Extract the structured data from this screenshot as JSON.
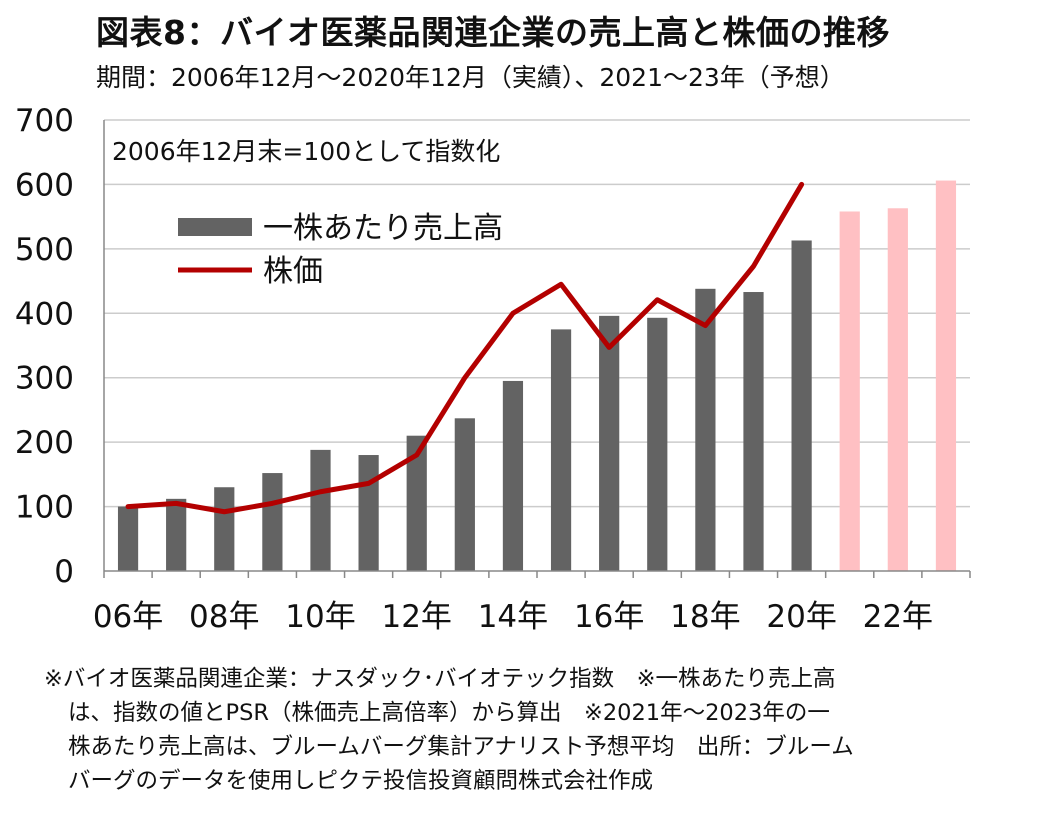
{
  "header": {
    "title": "図表8：バイオ医薬品関連企業の売上高と株価の推移",
    "subtitle": "期間：2006年12月～2020年12月（実績）、2021～23年（予想）"
  },
  "colors": {
    "actual_bar": "#636363",
    "forecast_bar": "#ffc0c3",
    "price_line": "#b30000",
    "grid": "#cccccc"
  },
  "chart_data": {
    "type": "bar",
    "note": "2006年12月末=100として指数化",
    "x": [
      2006,
      2007,
      2008,
      2009,
      2010,
      2011,
      2012,
      2013,
      2014,
      2015,
      2016,
      2017,
      2018,
      2019,
      2020,
      2021,
      2022,
      2023
    ],
    "x_tick_labels": [
      "06年",
      "08年",
      "10年",
      "12年",
      "14年",
      "16年",
      "18年",
      "20年",
      "22年"
    ],
    "ylim": [
      0,
      700
    ],
    "y_ticks": [
      0,
      100,
      200,
      300,
      400,
      500,
      600,
      700
    ],
    "grid": true,
    "legend_position": "top-left",
    "series": [
      {
        "name": "一株あたり売上高",
        "kind": "bar",
        "values": [
          100,
          112,
          130,
          152,
          188,
          180,
          210,
          237,
          295,
          375,
          396,
          393,
          438,
          433,
          513,
          558,
          563,
          606
        ],
        "forecast_from_index": 15
      },
      {
        "name": "株価",
        "kind": "line",
        "values": [
          100,
          105,
          92,
          105,
          123,
          136,
          180,
          300,
          400,
          445,
          347,
          421,
          381,
          473,
          600,
          null,
          null,
          null
        ]
      }
    ]
  },
  "footnote": {
    "lines": [
      "※バイオ医薬品関連企業：ナスダック･バイオテック指数　※一株あたり売上高",
      "は、指数の値とPSR（株価売上高倍率）から算出　※2021年～2023年の一",
      "株あたり売上高は、ブルームバーグ集計アナリスト予想平均　出所：ブルーム",
      "バーグのデータを使用しピクテ投信投資顧問株式会社作成"
    ]
  }
}
